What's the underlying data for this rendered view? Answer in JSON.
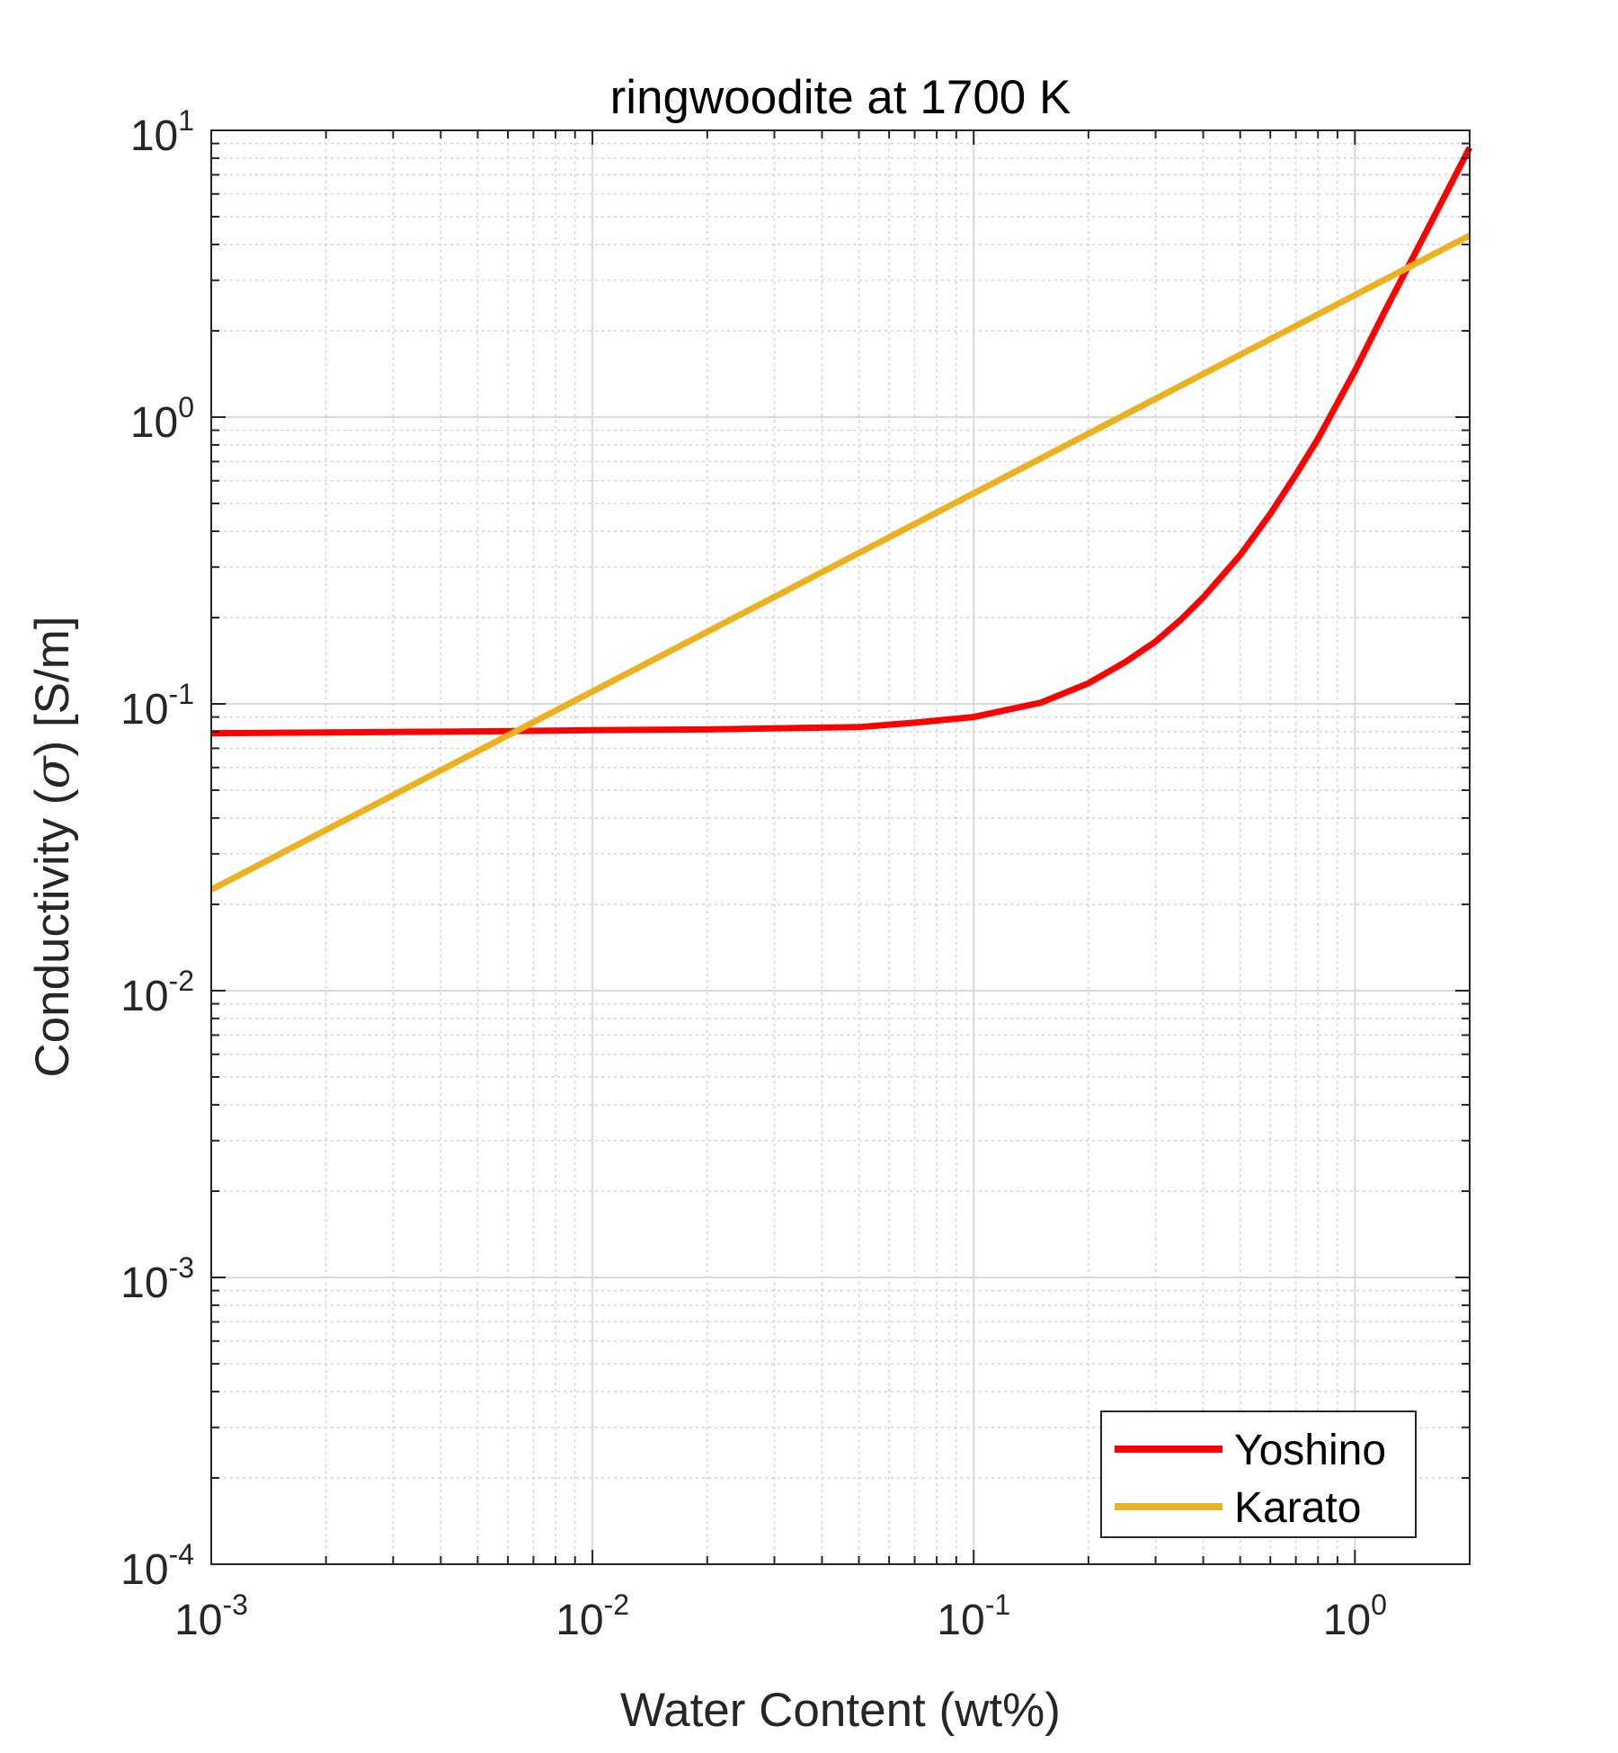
{
  "chart_data": {
    "type": "line",
    "title": "ringwoodite at 1700 K",
    "xlabel": "Water Content (wt%)",
    "ylabel_prefix": "Conductivity (",
    "ylabel_symbol": "σ",
    "ylabel_suffix": ") [S/m]",
    "xscale": "log",
    "yscale": "log",
    "xlim": [
      0.001,
      2
    ],
    "ylim": [
      0.0001,
      10
    ],
    "grid": true,
    "minor_grid": true,
    "legend_position": "bottom-right",
    "x_ticks": [
      {
        "base": "10",
        "exp": "-3",
        "value": 0.001
      },
      {
        "base": "10",
        "exp": "-2",
        "value": 0.01
      },
      {
        "base": "10",
        "exp": "-1",
        "value": 0.1
      },
      {
        "base": "10",
        "exp": "0",
        "value": 1
      }
    ],
    "y_ticks": [
      {
        "base": "10",
        "exp": "-4",
        "value": 0.0001
      },
      {
        "base": "10",
        "exp": "-3",
        "value": 0.001
      },
      {
        "base": "10",
        "exp": "-2",
        "value": 0.01
      },
      {
        "base": "10",
        "exp": "-1",
        "value": 0.1
      },
      {
        "base": "10",
        "exp": "0",
        "value": 1
      },
      {
        "base": "10",
        "exp": "1",
        "value": 10
      }
    ],
    "series": [
      {
        "name": "Yoshino",
        "color": "#ff0000",
        "x": [
          0.001,
          0.002,
          0.005,
          0.01,
          0.02,
          0.05,
          0.07,
          0.1,
          0.15,
          0.2,
          0.25,
          0.3,
          0.35,
          0.4,
          0.5,
          0.6,
          0.7,
          0.8,
          1.0,
          1.2,
          1.5,
          2.0
        ],
        "y": [
          0.079,
          0.0795,
          0.0802,
          0.081,
          0.0815,
          0.083,
          0.086,
          0.09,
          0.101,
          0.118,
          0.14,
          0.165,
          0.197,
          0.235,
          0.33,
          0.46,
          0.63,
          0.84,
          1.45,
          2.35,
          4.15,
          8.7
        ]
      },
      {
        "name": "Karato",
        "color": "#edb120",
        "x": [
          0.001,
          2.0
        ],
        "y": [
          0.0225,
          4.3
        ]
      }
    ]
  }
}
